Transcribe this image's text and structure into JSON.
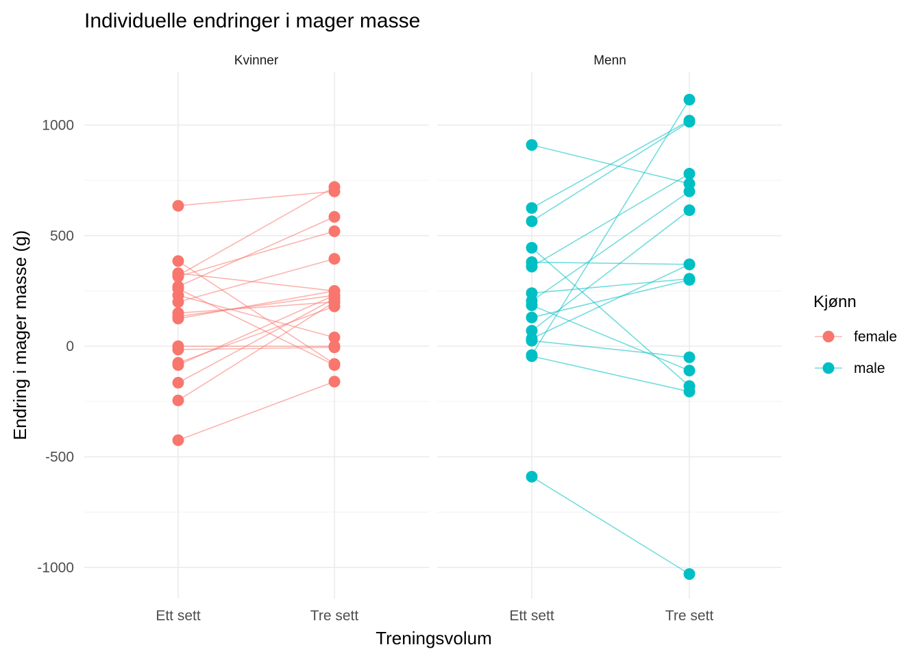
{
  "chart_data": {
    "type": "line",
    "title": "Individuelle endringer i mager masse",
    "xlabel": "Treningsvolum",
    "ylabel": "Endring i mager masse (g)",
    "categories": [
      "Ett sett",
      "Tre sett"
    ],
    "ylim": [
      -1140,
      1240
    ],
    "yticks": [
      -1000,
      -500,
      0,
      500,
      1000
    ],
    "ytick_labels": [
      "-1000",
      "-500",
      "0",
      "500",
      "1000"
    ],
    "grid": true,
    "legend": {
      "title": "Kjønn",
      "position": "right",
      "entries": [
        {
          "label": "female",
          "color": "#F8766D"
        },
        {
          "label": "male",
          "color": "#00BFC4"
        }
      ]
    },
    "panels": [
      {
        "label": "Kvinner",
        "group": "female",
        "color": "#F8766D",
        "pairs": [
          [
            635,
            700
          ],
          [
            385,
            -80
          ],
          [
            330,
            250
          ],
          [
            320,
            720
          ],
          [
            315,
            520
          ],
          [
            270,
            585
          ],
          [
            260,
            -85
          ],
          [
            230,
            40
          ],
          [
            200,
            395
          ],
          [
            150,
            200
          ],
          [
            135,
            230
          ],
          [
            125,
            250
          ],
          [
            0,
            0
          ],
          [
            -15,
            -5
          ],
          [
            -75,
            180
          ],
          [
            -85,
            230
          ],
          [
            -165,
            215
          ],
          [
            -245,
            200
          ],
          [
            -425,
            -160
          ]
        ]
      },
      {
        "label": "Menn",
        "group": "male",
        "color": "#00BFC4",
        "pairs": [
          [
            910,
            735
          ],
          [
            625,
            1020
          ],
          [
            565,
            1015
          ],
          [
            445,
            -180
          ],
          [
            380,
            370
          ],
          [
            360,
            780
          ],
          [
            240,
            305
          ],
          [
            205,
            700
          ],
          [
            185,
            -110
          ],
          [
            130,
            300
          ],
          [
            70,
            615
          ],
          [
            35,
            370
          ],
          [
            25,
            -50
          ],
          [
            -40,
            1115
          ],
          [
            -45,
            -205
          ],
          [
            -590,
            -1030
          ]
        ]
      }
    ]
  }
}
